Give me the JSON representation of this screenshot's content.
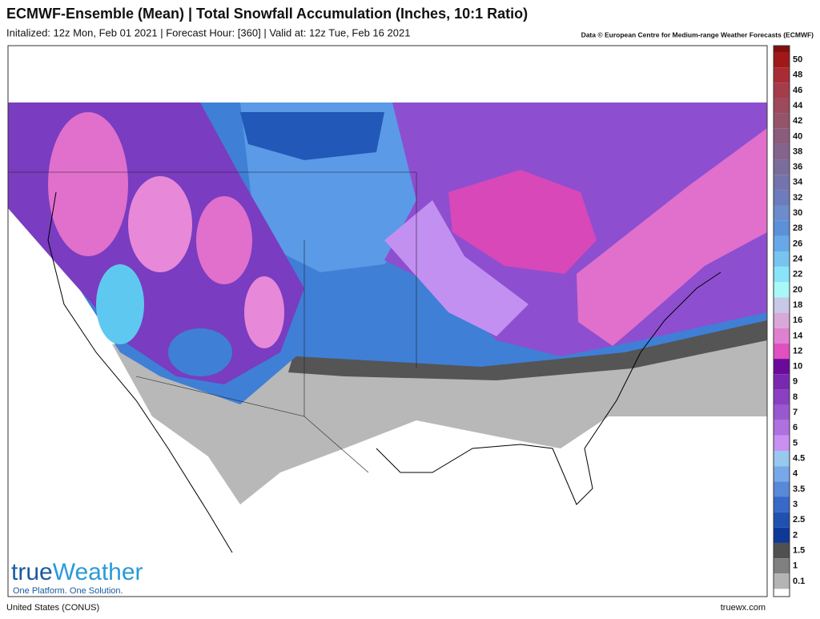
{
  "header": {
    "title": "ECMWF-Ensemble (Mean) | Total Snowfall Accumulation (Inches, 10:1 Ratio)",
    "subtitle": "Initalized: 12z Mon, Feb 01 2021 | Forecast Hour: [360] | Valid at: 12z Tue, Feb 16 2021",
    "credit": "Data © European Centre for Medium-range Weather Forecasts (ECMWF)"
  },
  "legend": {
    "items": [
      {
        "value": 50,
        "color": "#a01818"
      },
      {
        "value": 48,
        "color": "#a82c34"
      },
      {
        "value": 46,
        "color": "#a43c4c"
      },
      {
        "value": 44,
        "color": "#9c4a5c"
      },
      {
        "value": 42,
        "color": "#94546c"
      },
      {
        "value": 40,
        "color": "#8c5c7c"
      },
      {
        "value": 38,
        "color": "#84648c"
      },
      {
        "value": 36,
        "color": "#7c6c9c"
      },
      {
        "value": 34,
        "color": "#7474ac"
      },
      {
        "value": 32,
        "color": "#6c7cbc"
      },
      {
        "value": 30,
        "color": "#6c8ccc"
      },
      {
        "value": 28,
        "color": "#5c90d8"
      },
      {
        "value": 26,
        "color": "#68a8e8"
      },
      {
        "value": 24,
        "color": "#78c4f0"
      },
      {
        "value": 22,
        "color": "#88e4f8"
      },
      {
        "value": 20,
        "color": "#a8f8f8"
      },
      {
        "value": 18,
        "color": "#c8c8e8"
      },
      {
        "value": 16,
        "color": "#d8a8d8"
      },
      {
        "value": 14,
        "color": "#e080d0"
      },
      {
        "value": 12,
        "color": "#e050c0"
      },
      {
        "value": 10,
        "color": "#6a0a9a"
      },
      {
        "value": 9,
        "color": "#7a28b0"
      },
      {
        "value": 8,
        "color": "#8a40c0"
      },
      {
        "value": 7,
        "color": "#9a58d0"
      },
      {
        "value": 6,
        "color": "#b070e0"
      },
      {
        "value": 5,
        "color": "#c890f0"
      },
      {
        "value": 4.5,
        "color": "#98c8f0"
      },
      {
        "value": 4,
        "color": "#78a8e8"
      },
      {
        "value": 3.5,
        "color": "#5888d8"
      },
      {
        "value": 3,
        "color": "#3868c8"
      },
      {
        "value": 2.5,
        "color": "#2050b0"
      },
      {
        "value": 2,
        "color": "#103898"
      },
      {
        "value": 1.5,
        "color": "#505050"
      },
      {
        "value": 1,
        "color": "#808080"
      },
      {
        "value": 0.1,
        "color": "#b4b4b4"
      }
    ]
  },
  "logo": {
    "name_part1": "true",
    "name_part2": "Weather",
    "tagline": "One Platform. One Solution."
  },
  "footer": {
    "region": "United States (CONUS)",
    "site": "truewx.com"
  }
}
